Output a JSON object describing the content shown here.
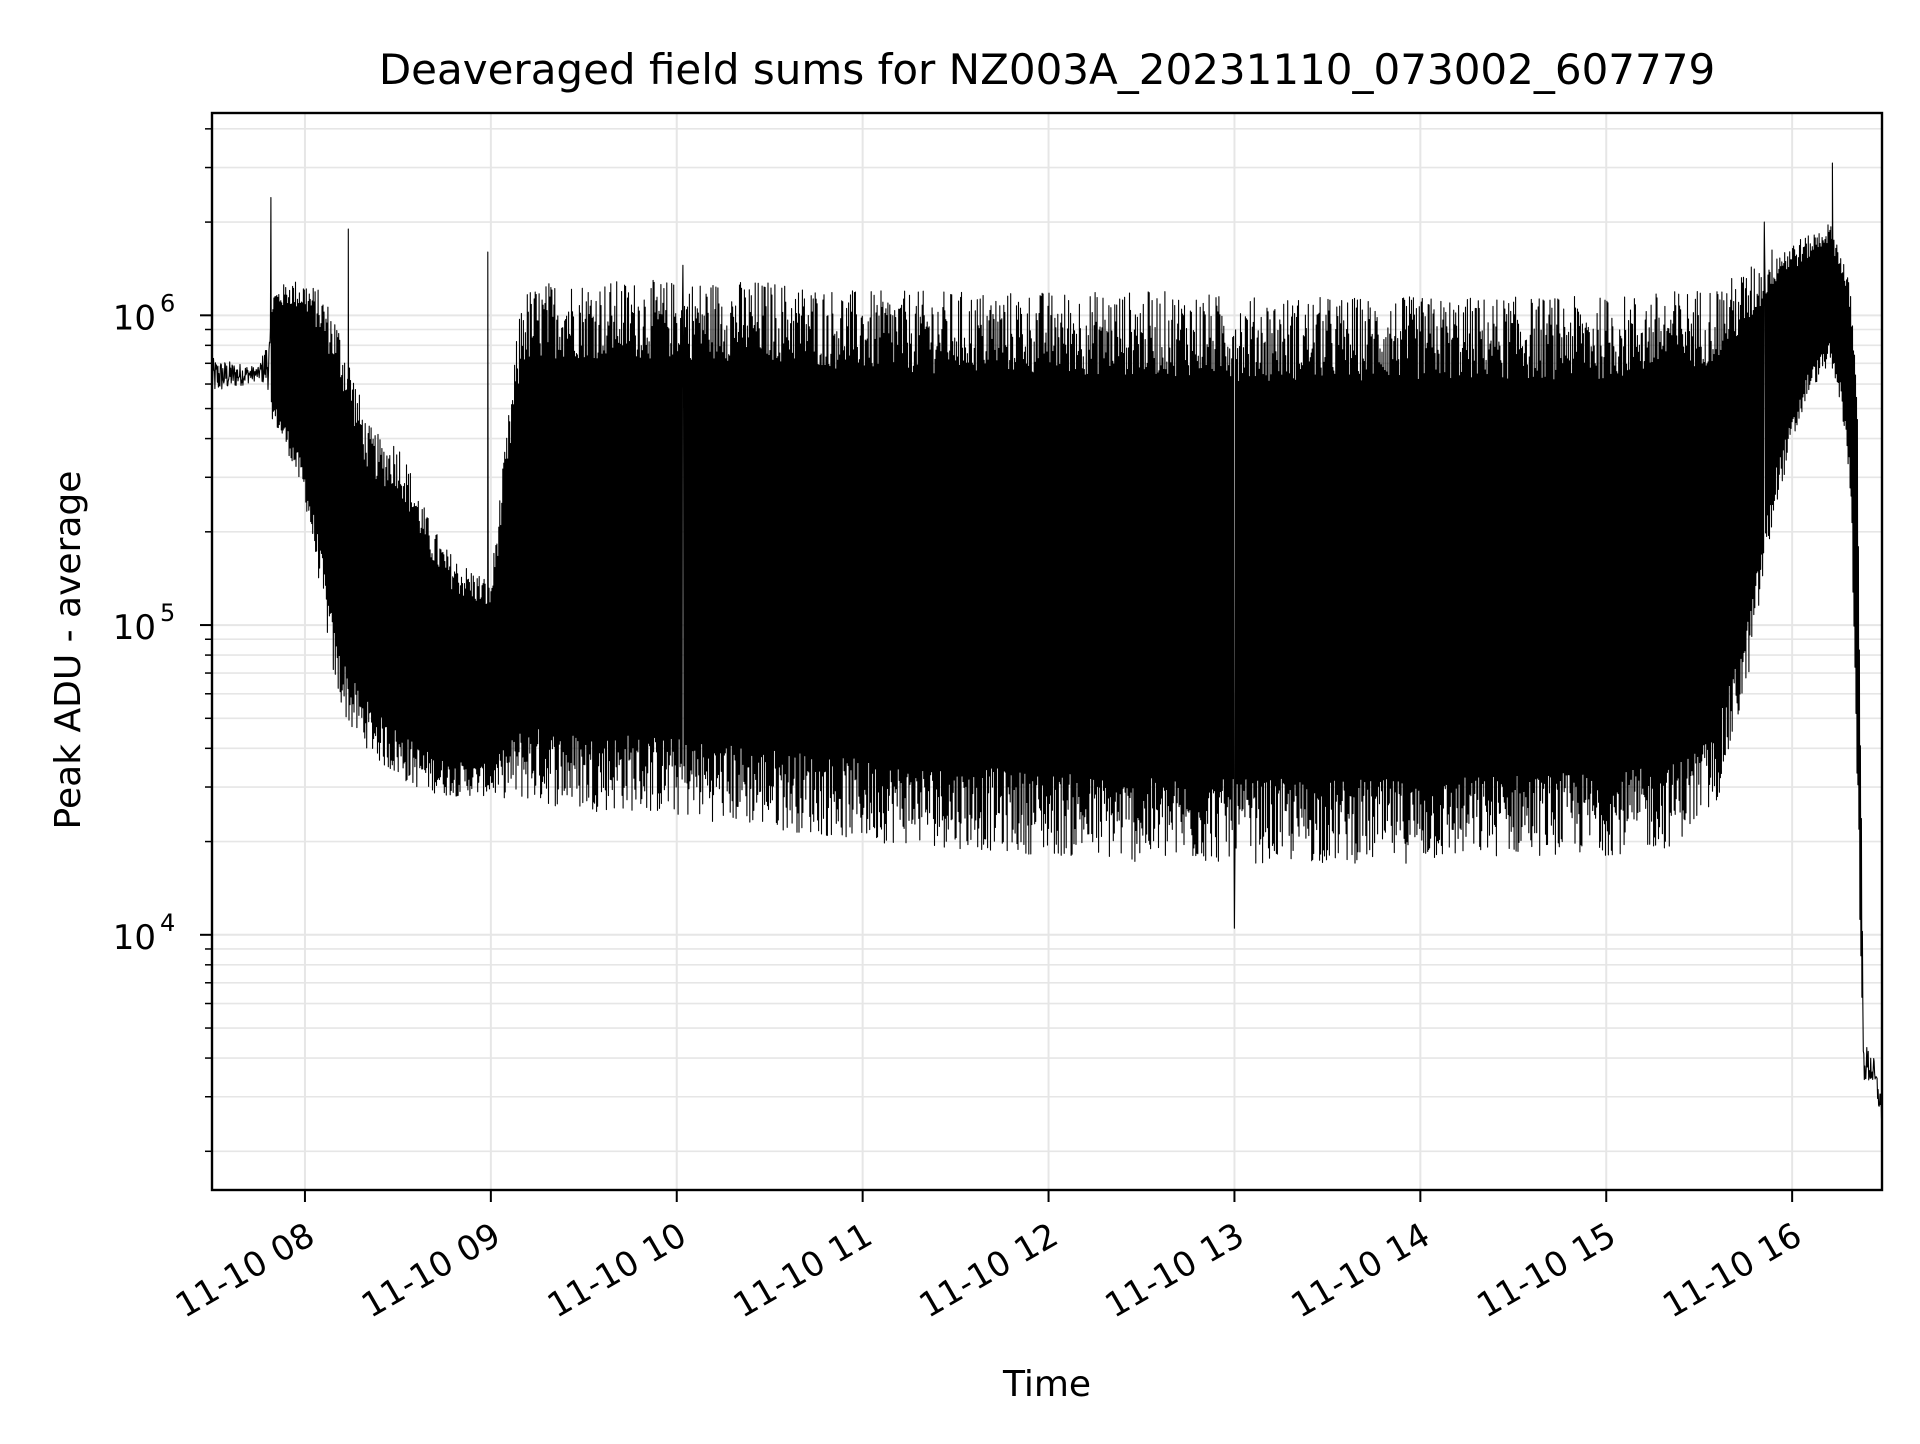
{
  "chart_data": {
    "type": "line",
    "title": "Deaveraged field sums for NZ003A_20231110_073002_607779",
    "xlabel": "Time",
    "ylabel": "Peak ADU - average",
    "yscale": "log",
    "ylim": [
      1500,
      4500000
    ],
    "xlim": [
      "2023-11-10T07:30:00",
      "2023-11-10T16:29:00"
    ],
    "x_tick_labels": [
      "11-10 08",
      "11-10 09",
      "11-10 10",
      "11-10 11",
      "11-10 12",
      "11-10 13",
      "11-10 14",
      "11-10 15",
      "11-10 16"
    ],
    "x_tick_times": [
      "2023-11-10T08:00:00",
      "2023-11-10T09:00:00",
      "2023-11-10T10:00:00",
      "2023-11-10T11:00:00",
      "2023-11-10T12:00:00",
      "2023-11-10T13:00:00",
      "2023-11-10T14:00:00",
      "2023-11-10T15:00:00",
      "2023-11-10T16:00:00"
    ],
    "y_tick_labels": [
      {
        "base": "10",
        "exp": "4",
        "value": 10000
      },
      {
        "base": "10",
        "exp": "5",
        "value": 100000
      },
      {
        "base": "10",
        "exp": "6",
        "value": 1000000
      }
    ],
    "grid": true,
    "line_color": "#000000",
    "grid_color": "#e6e6e6",
    "series": [
      {
        "x": [
          "2023-11-10T07:30",
          "2023-11-10T07:38",
          "2023-11-10T07:45",
          "2023-11-10T07:50",
          "2023-11-10T07:55",
          "2023-11-10T08:00",
          "2023-11-10T08:05",
          "2023-11-10T08:10",
          "2023-11-10T08:15",
          "2023-11-10T08:20",
          "2023-11-10T08:25",
          "2023-11-10T08:30",
          "2023-11-10T08:35",
          "2023-11-10T08:40",
          "2023-11-10T08:45",
          "2023-11-10T08:50",
          "2023-11-10T08:55",
          "2023-11-10T09:00",
          "2023-11-10T09:10",
          "2023-11-10T09:20",
          "2023-11-10T09:30",
          "2023-11-10T09:45",
          "2023-11-10T10:00",
          "2023-11-10T10:30",
          "2023-11-10T11:00",
          "2023-11-10T11:30",
          "2023-11-10T12:00",
          "2023-11-10T12:30",
          "2023-11-10T12:45",
          "2023-11-10T13:00",
          "2023-11-10T13:30",
          "2023-11-10T14:00",
          "2023-11-10T14:30",
          "2023-11-10T15:00",
          "2023-11-10T15:20",
          "2023-11-10T15:35",
          "2023-11-10T15:45",
          "2023-11-10T15:55",
          "2023-11-10T16:05",
          "2023-11-10T16:12",
          "2023-11-10T16:16",
          "2023-11-10T16:19",
          "2023-11-10T16:21",
          "2023-11-10T16:23",
          "2023-11-10T16:26",
          "2023-11-10T16:29"
        ],
        "low": [
          500000,
          550000,
          600000,
          450000,
          350000,
          250000,
          130000,
          60000,
          45000,
          40000,
          35000,
          32000,
          30000,
          29000,
          28000,
          28000,
          28000,
          28000,
          27000,
          26000,
          25000,
          25000,
          24000,
          22000,
          20000,
          19000,
          18000,
          17000,
          17000,
          17000,
          17000,
          17000,
          18000,
          18000,
          19000,
          25000,
          60000,
          250000,
          550000,
          700000,
          500000,
          250000,
          30000,
          3000,
          3000,
          2300
        ],
        "high": [
          800000,
          750000,
          700000,
          1200000,
          1300000,
          1300000,
          1200000,
          1000000,
          700000,
          450000,
          400000,
          400000,
          300000,
          220000,
          180000,
          160000,
          150000,
          140000,
          1200000,
          1300000,
          1300000,
          1300000,
          1300000,
          1300000,
          1200000,
          1200000,
          1200000,
          1200000,
          1200000,
          1150000,
          1150000,
          1150000,
          1150000,
          1150000,
          1200000,
          1250000,
          1400000,
          1700000,
          1800000,
          2000000,
          1600000,
          1200000,
          600000,
          5000,
          4500,
          3200
        ],
        "spikes": [
          {
            "x": "2023-11-10T07:49",
            "y": 2400000
          },
          {
            "x": "2023-11-10T08:14",
            "y": 1900000
          },
          {
            "x": "2023-11-10T08:59",
            "y": 1600000
          },
          {
            "x": "2023-11-10T10:02",
            "y": 1450000
          },
          {
            "x": "2023-11-10T13:00",
            "y": 10500
          },
          {
            "x": "2023-11-10T15:51",
            "y": 2000000
          },
          {
            "x": "2023-11-10T16:13",
            "y": 3100000
          }
        ]
      }
    ]
  }
}
